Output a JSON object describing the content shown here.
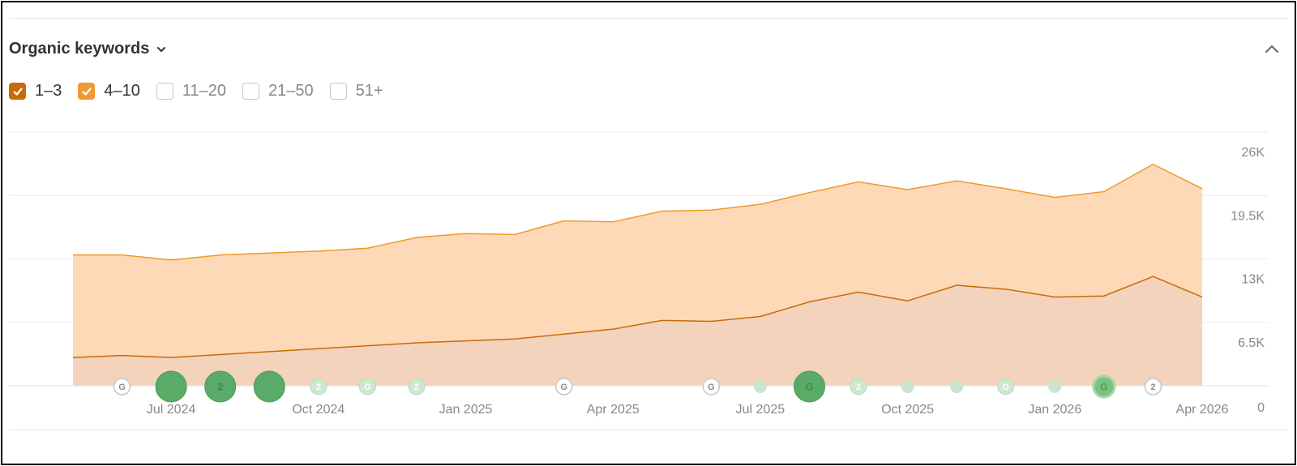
{
  "header": {
    "title": "Organic keywords"
  },
  "filters": [
    {
      "label": "1–3",
      "checked": true,
      "color": "#c96a0a"
    },
    {
      "label": "4–10",
      "checked": true,
      "color": "#f0992e"
    },
    {
      "label": "11–20",
      "checked": false,
      "color": "#c8c8c8"
    },
    {
      "label": "21–50",
      "checked": false,
      "color": "#c8c8c8"
    },
    {
      "label": "51+",
      "checked": false,
      "color": "#c8c8c8"
    }
  ],
  "chart_data": {
    "type": "area",
    "stacked": true,
    "x": [
      "2024-05",
      "2024-06",
      "2024-07",
      "2024-08",
      "2024-09",
      "2024-10",
      "2024-11",
      "2024-12",
      "2025-01",
      "2025-02",
      "2025-03",
      "2025-04",
      "2025-05",
      "2025-06",
      "2025-07",
      "2025-08",
      "2025-09",
      "2025-10",
      "2025-11",
      "2025-12",
      "2026-01",
      "2026-02",
      "2026-03",
      "2026-04"
    ],
    "series": [
      {
        "name": "1–3",
        "color": "#c96a0a",
        "fill": "#f3d3bb",
        "values": [
          2900,
          3100,
          2900,
          3200,
          3500,
          3800,
          4100,
          4400,
          4600,
          4800,
          5300,
          5800,
          6700,
          6600,
          7100,
          8600,
          9600,
          8700,
          10300,
          9900,
          9100,
          9200,
          11200,
          9100
        ]
      },
      {
        "name": "4–10",
        "color": "#f0992e",
        "fill": "#fdd9b8",
        "values": [
          10500,
          10300,
          10000,
          10200,
          10100,
          10000,
          10000,
          10800,
          11000,
          10700,
          11600,
          11000,
          11200,
          11400,
          11500,
          11200,
          11300,
          11400,
          10700,
          10300,
          10200,
          10700,
          11500,
          11100
        ]
      }
    ],
    "yticks": [
      0,
      6500,
      13000,
      19500,
      26000
    ],
    "ytick_labels": [
      "0",
      "6.5K",
      "13K",
      "19.5K",
      "26K"
    ],
    "ylim": [
      0,
      26000
    ],
    "xtick_labels": [
      {
        "label": "Jul 2024",
        "x": "2024-07"
      },
      {
        "label": "Oct 2024",
        "x": "2024-10"
      },
      {
        "label": "Jan 2025",
        "x": "2025-01"
      },
      {
        "label": "Apr 2025",
        "x": "2025-04"
      },
      {
        "label": "Jul 2025",
        "x": "2025-07"
      },
      {
        "label": "Oct 2025",
        "x": "2025-10"
      },
      {
        "label": "Jan 2026",
        "x": "2026-01"
      },
      {
        "label": "Apr 2026",
        "x": "2026-04"
      }
    ],
    "grid": true,
    "y_axis_side": "right",
    "annotations": [
      {
        "x": "2024-06",
        "label": "G",
        "style": "outline"
      },
      {
        "x": "2024-07",
        "label": "",
        "style": "large-dark"
      },
      {
        "x": "2024-08",
        "label": "2",
        "style": "large-dark"
      },
      {
        "x": "2024-09",
        "label": "",
        "style": "large-dark"
      },
      {
        "x": "2024-10",
        "label": "2",
        "style": "small-light"
      },
      {
        "x": "2024-11",
        "label": "G",
        "style": "small-light"
      },
      {
        "x": "2024-12",
        "label": "2",
        "style": "small-light"
      },
      {
        "x": "2025-03",
        "label": "G",
        "style": "outline"
      },
      {
        "x": "2025-06",
        "label": "G",
        "style": "outline"
      },
      {
        "x": "2025-07",
        "label": "",
        "style": "dot-light"
      },
      {
        "x": "2025-08",
        "label": "G",
        "style": "large-dark"
      },
      {
        "x": "2025-09",
        "label": "2",
        "style": "small-light"
      },
      {
        "x": "2025-10",
        "label": "",
        "style": "dot-light"
      },
      {
        "x": "2025-11",
        "label": "",
        "style": "dot-light"
      },
      {
        "x": "2025-12",
        "label": "G",
        "style": "small-light"
      },
      {
        "x": "2026-01",
        "label": "",
        "style": "dot-light"
      },
      {
        "x": "2026-02",
        "label": "G",
        "style": "medium"
      },
      {
        "x": "2026-03",
        "label": "2",
        "style": "outline"
      }
    ]
  }
}
